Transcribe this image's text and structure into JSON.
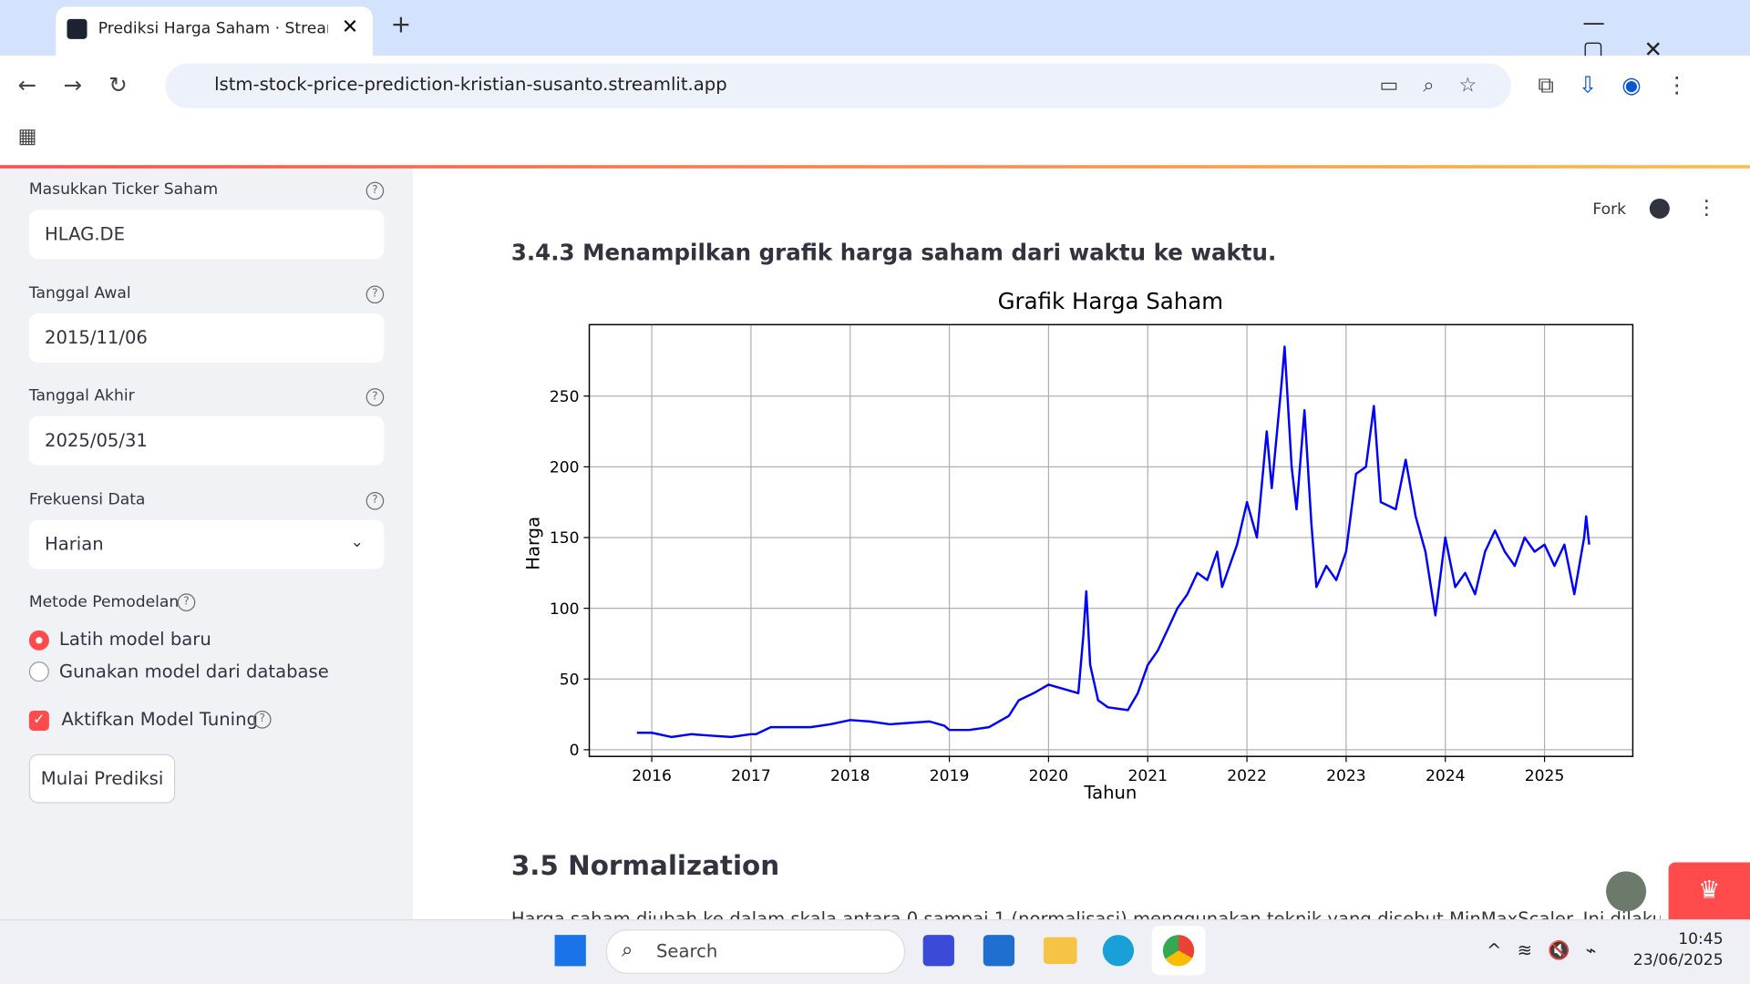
{
  "browser": {
    "tab_title": "Prediksi Harga Saham · Streamlit",
    "url": "lstm-stock-price-prediction-kristian-susanto.streamlit.app"
  },
  "sidebar": {
    "fields": [
      {
        "label": "Masukkan Ticker Saham",
        "value": "HLAG.DE"
      },
      {
        "label": "Tanggal Awal",
        "value": "2015/11/06"
      },
      {
        "label": "Tanggal Akhir",
        "value": "2025/05/31"
      },
      {
        "label": "Frekuensi Data",
        "value": "Harian"
      }
    ],
    "method_label": "Metode Pemodelan",
    "options": [
      "Latih model baru",
      "Gunakan model dari database"
    ],
    "tuning_label": "Aktifkan Model Tuning",
    "button": "Mulai Prediksi"
  },
  "header": {
    "fork": "Fork"
  },
  "content": {
    "heading_1": "3.4.3 Menampilkan grafik harga saham dari waktu ke waktu.",
    "heading_2": "3.5 Normalization",
    "paragraph": "Harga saham diubah ke dalam skala antara 0 sampai 1 (normalisasi) menggunakan teknik yang disebut MinMaxScaler. Ini dilakukan agar"
  },
  "chart_data": {
    "type": "line",
    "title": "Grafik Harga Saham",
    "x_label": "Tahun",
    "y_label": "Harga",
    "color": "#0000ff",
    "grid": true,
    "xlim": [
      2015.37,
      2025.89
    ],
    "ylim": [
      -4.7,
      300.5
    ],
    "xticks": [
      2016,
      2017,
      2018,
      2019,
      2020,
      2021,
      2022,
      2023,
      2024,
      2025
    ],
    "yticks": [
      0,
      50,
      100,
      150,
      200,
      250
    ],
    "x": [
      2015.85,
      2016.0,
      2016.2,
      2016.4,
      2016.6,
      2016.8,
      2017.0,
      2017.05,
      2017.2,
      2017.4,
      2017.6,
      2017.8,
      2018.0,
      2018.2,
      2018.4,
      2018.6,
      2018.8,
      2018.95,
      2019.0,
      2019.2,
      2019.4,
      2019.6,
      2019.7,
      2019.85,
      2020.0,
      2020.2,
      2020.3,
      2020.35,
      2020.38,
      2020.42,
      2020.5,
      2020.6,
      2020.8,
      2020.9,
      2021.0,
      2021.1,
      2021.2,
      2021.3,
      2021.4,
      2021.5,
      2021.6,
      2021.7,
      2021.75,
      2021.9,
      2022.0,
      2022.1,
      2022.2,
      2022.25,
      2022.35,
      2022.38,
      2022.45,
      2022.5,
      2022.58,
      2022.65,
      2022.7,
      2022.8,
      2022.9,
      2023.0,
      2023.1,
      2023.2,
      2023.28,
      2023.35,
      2023.5,
      2023.6,
      2023.7,
      2023.8,
      2023.9,
      2024.0,
      2024.1,
      2024.2,
      2024.3,
      2024.4,
      2024.5,
      2024.6,
      2024.7,
      2024.8,
      2024.9,
      2025.0,
      2025.1,
      2025.2,
      2025.3,
      2025.4,
      2025.42,
      2025.45
    ],
    "values": [
      12,
      12,
      9,
      11,
      10,
      9,
      11,
      11,
      16,
      16,
      16,
      18,
      21,
      20,
      18,
      19,
      20,
      17,
      14,
      14,
      16,
      24,
      35,
      40,
      46,
      42,
      40,
      80,
      112,
      60,
      35,
      30,
      28,
      40,
      60,
      70,
      85,
      100,
      110,
      125,
      120,
      140,
      115,
      145,
      175,
      150,
      225,
      185,
      260,
      285,
      200,
      170,
      240,
      160,
      115,
      130,
      120,
      140,
      195,
      200,
      243,
      175,
      170,
      205,
      165,
      140,
      95,
      150,
      115,
      125,
      110,
      140,
      155,
      140,
      130,
      150,
      140,
      145,
      130,
      145,
      110,
      150,
      165,
      145
    ]
  },
  "taskbar": {
    "search": "Search",
    "time": "10:45",
    "date": "23/06/2025"
  }
}
